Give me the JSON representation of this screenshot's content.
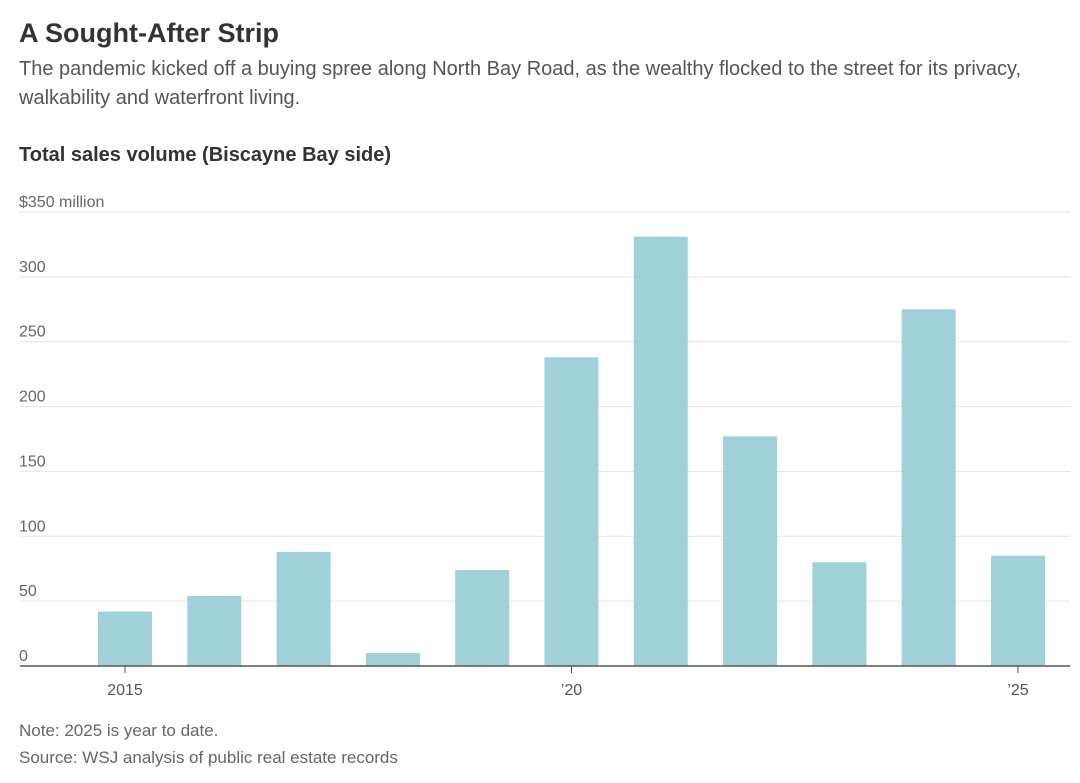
{
  "chart_data": {
    "type": "bar",
    "title": "A Sought-After Strip",
    "subtitle": "The pandemic kicked off a buying spree along North Bay Road, as the wealthy flocked to the street for its privacy, walkability and waterfront living.",
    "heading": "Total sales volume (Biscayne Bay side)",
    "categories": [
      "2015",
      "2016",
      "2017",
      "2018",
      "2019",
      "2020",
      "2021",
      "2022",
      "2023",
      "2024",
      "2025"
    ],
    "values": [
      42,
      54,
      88,
      10,
      74,
      238,
      331,
      177,
      80,
      275,
      85
    ],
    "ylim": [
      0,
      350
    ],
    "yticks": [
      0,
      50,
      100,
      150,
      200,
      250,
      300,
      350
    ],
    "ytick_labels": [
      "0",
      "50",
      "100",
      "150",
      "200",
      "250",
      "300",
      "$350 million"
    ],
    "xtick_labels": [
      {
        "category": "2015",
        "label": "2015"
      },
      {
        "category": "2020",
        "label": "’20"
      },
      {
        "category": "2025",
        "label": "’25"
      }
    ],
    "bar_color": "#a0d1d8",
    "grid": true,
    "legend": "none"
  },
  "note": "Note: 2025 is year to date.",
  "source": "Source: WSJ analysis of public real estate records"
}
